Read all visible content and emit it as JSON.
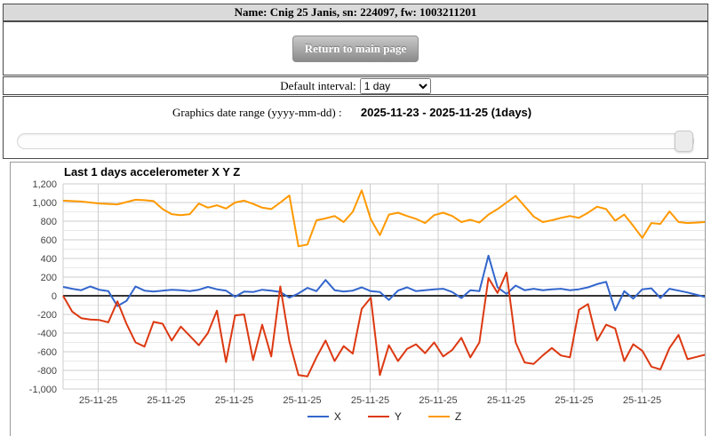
{
  "header": {
    "title": "Name: Cnig 25 Janis, sn: 224097, fw: 1003211201"
  },
  "toolbar": {
    "return_button_label": "Return to main page"
  },
  "interval": {
    "label": "Default interval:",
    "selected": "1 day"
  },
  "date_range": {
    "label": "Graphics date range (yyyy-mm-dd) :",
    "value": "2025-11-23 - 2025-11-25 (1days)",
    "slider_value": 100
  },
  "chart_data": {
    "type": "line",
    "title": "Last 1 days accelerometer X Y Z",
    "ylim": [
      -1000,
      1200
    ],
    "y_tick_step": 200,
    "grid": true,
    "legend_position": "bottom",
    "x_tick_labels": [
      "25-11-25",
      "25-11-25",
      "25-11-25",
      "25-11-25",
      "25-11-25",
      "25-11-25",
      "25-11-25",
      "25-11-25",
      "25-11-25"
    ],
    "axis_text_color": "#444444",
    "gridline_color": "#cccccc",
    "minor_gridline_color": "#e9e9e9",
    "baseline_color": "#333333",
    "series": [
      {
        "name": "X",
        "color": "#3366cc",
        "values": [
          95,
          75,
          60,
          100,
          65,
          50,
          -110,
          -55,
          100,
          55,
          45,
          55,
          65,
          60,
          50,
          65,
          95,
          70,
          55,
          -10,
          45,
          40,
          65,
          55,
          40,
          -20,
          25,
          85,
          50,
          170,
          60,
          45,
          55,
          90,
          50,
          40,
          -45,
          55,
          90,
          50,
          60,
          70,
          75,
          40,
          -25,
          60,
          50,
          430,
          90,
          20,
          110,
          60,
          75,
          60,
          70,
          75,
          60,
          70,
          90,
          125,
          150,
          -155,
          50,
          -30,
          70,
          80,
          -25,
          75,
          55,
          35,
          10,
          -15
        ]
      },
      {
        "name": "Y",
        "color": "#dc3912",
        "values": [
          0,
          -170,
          -240,
          -255,
          -260,
          -285,
          -60,
          -300,
          -500,
          -545,
          -280,
          -300,
          -480,
          -330,
          -430,
          -530,
          -400,
          -160,
          -710,
          -210,
          -200,
          -690,
          -310,
          -650,
          100,
          -490,
          -850,
          -865,
          -660,
          -480,
          -700,
          -540,
          -620,
          -140,
          -20,
          -850,
          -530,
          -700,
          -570,
          -520,
          -615,
          -500,
          -650,
          -580,
          -450,
          -660,
          -500,
          190,
          30,
          250,
          -500,
          -715,
          -730,
          -640,
          -560,
          -640,
          -660,
          -150,
          -90,
          -480,
          -310,
          -350,
          -700,
          -520,
          -590,
          -760,
          -790,
          -560,
          -420,
          -680,
          -655,
          -630
        ]
      },
      {
        "name": "Z",
        "color": "#ff9900",
        "values": [
          1020,
          1015,
          1010,
          1000,
          990,
          985,
          980,
          1005,
          1030,
          1025,
          1015,
          930,
          875,
          865,
          875,
          990,
          945,
          970,
          935,
          1000,
          1020,
          985,
          945,
          930,
          1000,
          1075,
          530,
          550,
          810,
          830,
          855,
          790,
          900,
          1130,
          820,
          650,
          870,
          890,
          855,
          825,
          780,
          865,
          890,
          855,
          790,
          815,
          785,
          870,
          930,
          1000,
          1070,
          960,
          850,
          790,
          810,
          835,
          855,
          835,
          890,
          955,
          930,
          805,
          870,
          750,
          620,
          780,
          770,
          905,
          790,
          780,
          785,
          790
        ]
      }
    ]
  }
}
